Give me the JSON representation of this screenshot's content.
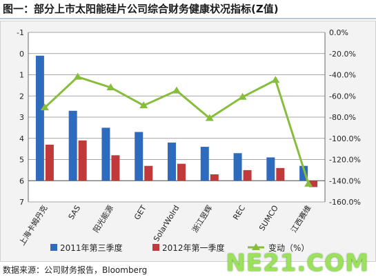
{
  "title": "图一：部分上市太阳能硅片公司综合财务健康状况指标(Z值)",
  "source": "数据来源：公司财务报告，Bloomberg",
  "logo_text": "NE21.COM",
  "colors": {
    "series_2011": "#2f6bbd",
    "series_2012": "#c0393b",
    "change_line": "#86bd3c",
    "grid": "#888888",
    "plot_bg": "#ffffff"
  },
  "chart_data": {
    "type": "bar",
    "categories": [
      "上海卡姆丹克",
      "SAS",
      "阳光能源",
      "GET",
      "SolarWolrd",
      "浙江昱辉",
      "REC",
      "SUMCO",
      "江西赛维"
    ],
    "series": [
      {
        "name": "2011年第三季度",
        "type": "bar",
        "axis": "left",
        "values": [
          5.9,
          3.3,
          2.5,
          2.3,
          1.8,
          1.6,
          1.3,
          1.1,
          0.7
        ]
      },
      {
        "name": "2012年第一季度",
        "type": "bar",
        "axis": "left",
        "values": [
          1.7,
          1.9,
          1.2,
          0.7,
          0.8,
          0.3,
          0.5,
          0.6,
          -0.3
        ]
      },
      {
        "name": "变动（%）",
        "type": "line",
        "axis": "right",
        "values": [
          -71,
          -42,
          -52,
          -69,
          -55,
          -81,
          -61,
          -45,
          -143
        ]
      }
    ],
    "y_left": {
      "min": -1,
      "max": 7,
      "ticks": [
        "-1",
        "0",
        "1",
        "2",
        "3",
        "4",
        "5",
        "6",
        "7"
      ]
    },
    "y_right": {
      "min": -160,
      "max": 0,
      "ticks": [
        "0.0%",
        "-20.0%",
        "-40.0%",
        "-60.0%",
        "-80.0%",
        "-100.0%",
        "-120.0%",
        "-140.0%",
        "-160.0%"
      ]
    },
    "grid": "horizontal",
    "legend_position": "bottom"
  }
}
